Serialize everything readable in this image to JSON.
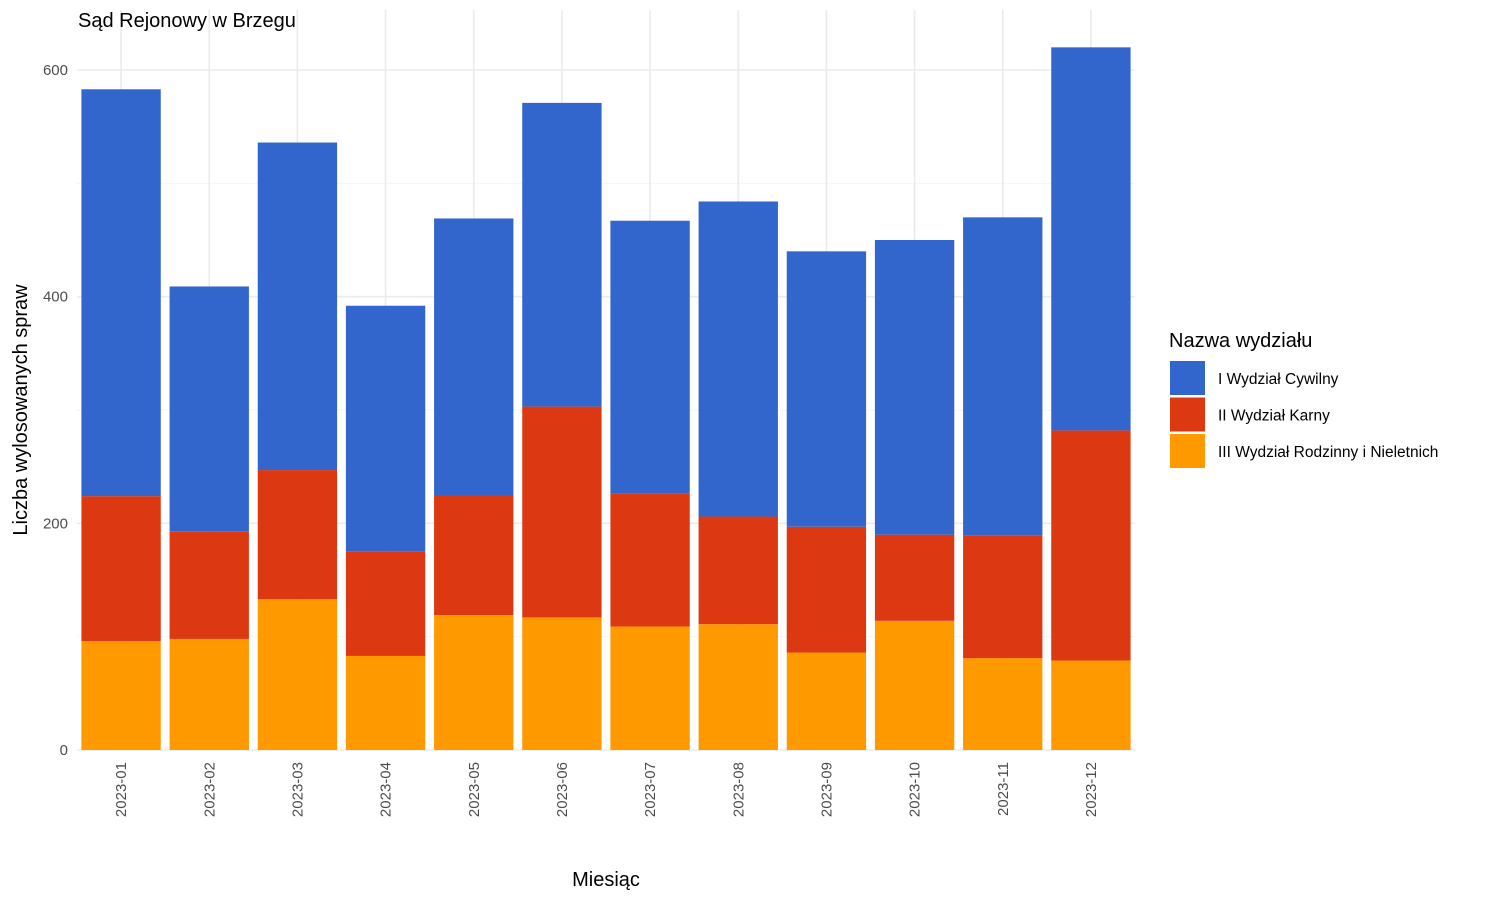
{
  "chart_data": {
    "type": "bar",
    "stacked": true,
    "title": "Sąd Rejonowy w Brzegu",
    "xlabel": "Miesiąc",
    "ylabel": "Liczba wylosowanych spraw",
    "ylim": [
      0,
      620
    ],
    "yticks": [
      0,
      200,
      400,
      600
    ],
    "grid": true,
    "legend_title": "Nazwa wydziału",
    "legend_position": "right",
    "categories": [
      "2023-01",
      "2023-02",
      "2023-03",
      "2023-04",
      "2023-05",
      "2023-06",
      "2023-07",
      "2023-08",
      "2023-09",
      "2023-10",
      "2023-11",
      "2023-12"
    ],
    "series": [
      {
        "name": "III Wydział Rodzinny i Nieletnich",
        "color": "#ff9900",
        "values": [
          96,
          98,
          133,
          83,
          119,
          117,
          109,
          111,
          86,
          114,
          81,
          79
        ]
      },
      {
        "name": "II Wydział Karny",
        "color": "#dc3912",
        "values": [
          128,
          95,
          114,
          92,
          106,
          186,
          117,
          95,
          111,
          76,
          108,
          203
        ]
      },
      {
        "name": "I Wydział Cywilny",
        "color": "#3366cc",
        "values": [
          359,
          216,
          289,
          217,
          244,
          268,
          241,
          278,
          243,
          260,
          281,
          338
        ]
      }
    ],
    "legend_order": [
      "I Wydział Cywilny",
      "II Wydział Karny",
      "III Wydział Rodzinny i Nieletnich"
    ]
  }
}
